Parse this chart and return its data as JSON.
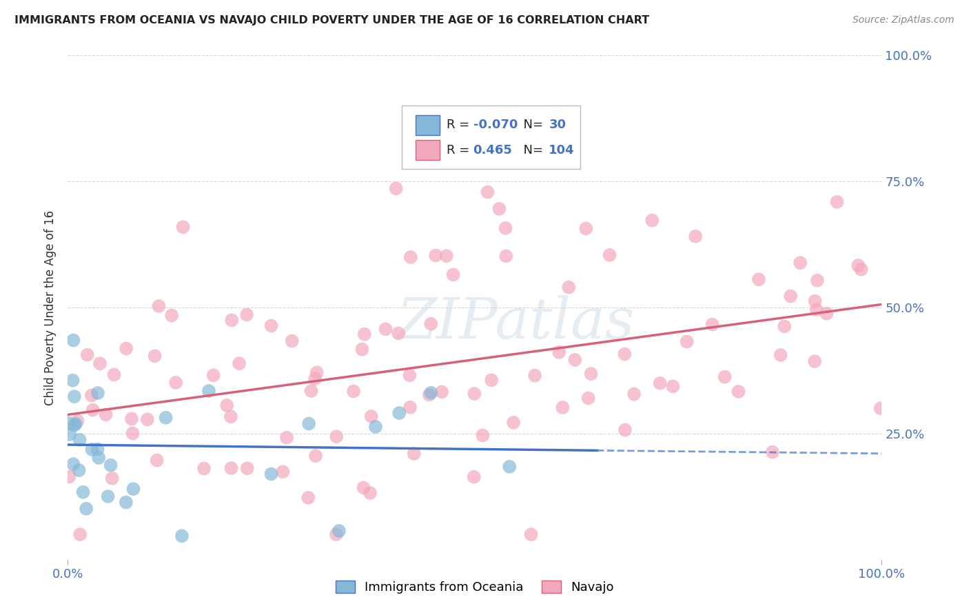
{
  "title": "IMMIGRANTS FROM OCEANIA VS NAVAJO CHILD POVERTY UNDER THE AGE OF 16 CORRELATION CHART",
  "source": "Source: ZipAtlas.com",
  "ylabel": "Child Poverty Under the Age of 16",
  "R_blue": -0.07,
  "N_blue": 30,
  "R_pink": 0.465,
  "N_pink": 104,
  "blue_color": "#85b8d8",
  "pink_color": "#f4a8bc",
  "blue_line_color": "#4472c4",
  "pink_line_color": "#d9607a",
  "watermark": "ZIPatlas",
  "background_color": "#ffffff",
  "label_color": "#4472c4",
  "grid_color": "#cccccc",
  "title_color": "#222222",
  "source_color": "#888888"
}
